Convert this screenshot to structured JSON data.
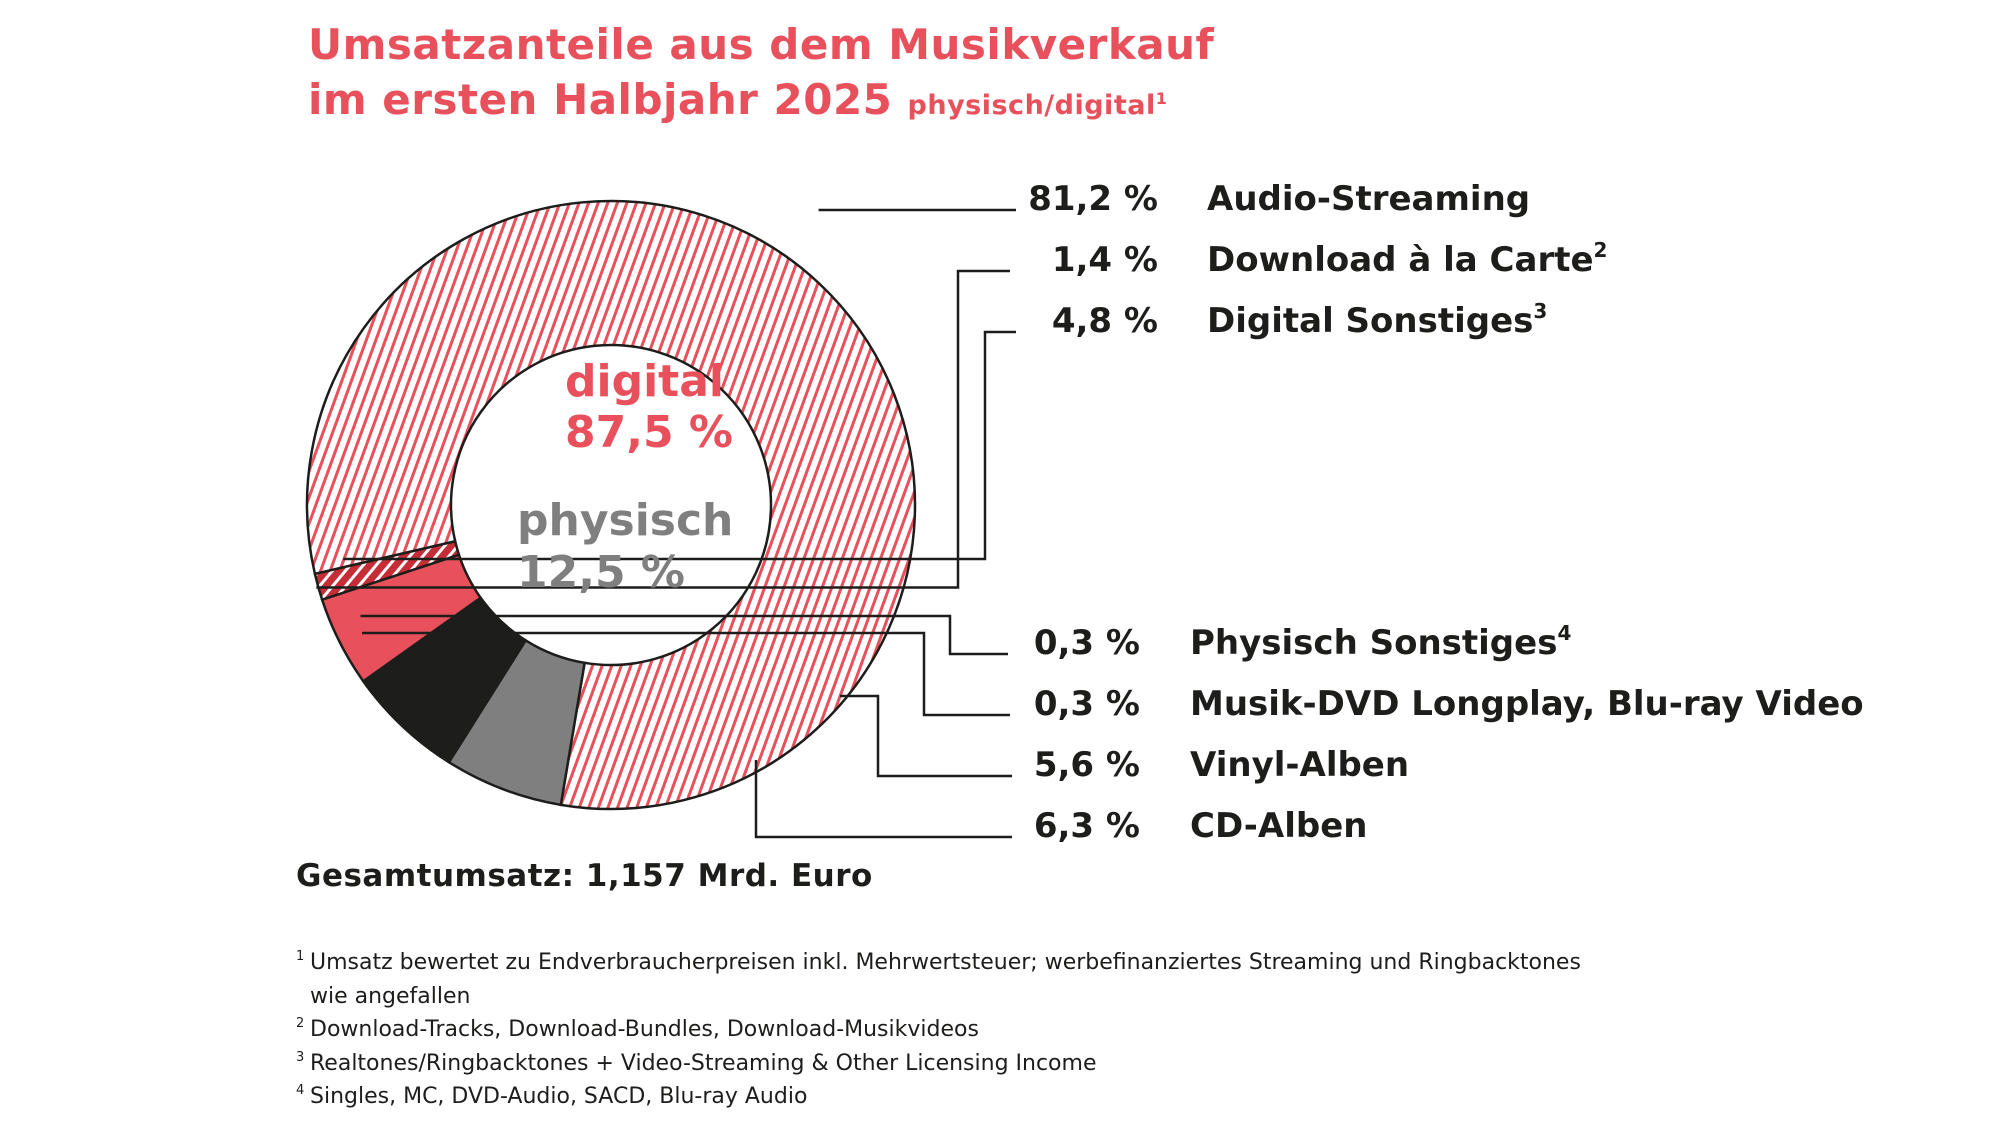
{
  "title": {
    "line1": "Umsatzanteile aus dem Musikverkauf",
    "line2": "im ersten Halbjahr 2025",
    "subtitle": "physisch/digital",
    "subtitle_note": "1"
  },
  "center": {
    "digital_label": "digital",
    "digital_value": "87,5 %",
    "physical_label": "physisch",
    "physical_value": "12,5 %"
  },
  "total": "Gesamtumsatz: 1,157 Mrd. Euro",
  "colors": {
    "digital_red": "#e8505b",
    "dark_red": "#c72d36",
    "black": "#1d1d1b",
    "gray": "#7f7f7f",
    "title": "#e8505b"
  },
  "chart_data": {
    "type": "pie",
    "style": "donut",
    "groups": [
      {
        "name": "digital",
        "value": 87.5
      },
      {
        "name": "physisch",
        "value": 12.5
      }
    ],
    "slices": [
      {
        "label": "Audio-Streaming",
        "note": "",
        "value": 81.2,
        "display": "81,2 %",
        "group": "digital",
        "fill": "hatch-red"
      },
      {
        "label": "Download à la Carte",
        "note": "2",
        "value": 1.4,
        "display": "1,4 %",
        "group": "digital",
        "fill": "hatch-darkred"
      },
      {
        "label": "Digital Sonstiges",
        "note": "3",
        "value": 4.8,
        "display": "4,8 %",
        "group": "digital",
        "fill": "#e8505b"
      },
      {
        "label": "Physisch Sonstiges",
        "note": "4",
        "value": 0.3,
        "display": "0,3 %",
        "group": "physisch",
        "fill": "#1d1d1b"
      },
      {
        "label": "Musik-DVD Longplay, Blu-ray Video",
        "note": "",
        "value": 0.3,
        "display": "0,3 %",
        "group": "physisch",
        "fill": "#1d1d1b"
      },
      {
        "label": "Vinyl-Alben",
        "note": "",
        "value": 5.6,
        "display": "5,6 %",
        "group": "physisch",
        "fill": "#1d1d1b"
      },
      {
        "label": "CD-Alben",
        "note": "",
        "value": 6.3,
        "display": "6,3 %",
        "group": "physisch",
        "fill": "#7f7f7f"
      }
    ]
  },
  "footnotes": [
    {
      "num": "1",
      "text": "Umsatz bewertet zu Endverbraucherpreisen inkl. Mehrwertsteuer; werbefinanziertes Streaming und Ringbacktones wie angefallen"
    },
    {
      "num": "2",
      "text": "Download-Tracks, Download-Bundles, Download-Musikvideos"
    },
    {
      "num": "3",
      "text": "Realtones/Ringbacktones + Video-Streaming & Other Licensing Income"
    },
    {
      "num": "4",
      "text": "Singles, MC, DVD-Audio, SACD, Blu-ray Audio"
    }
  ]
}
